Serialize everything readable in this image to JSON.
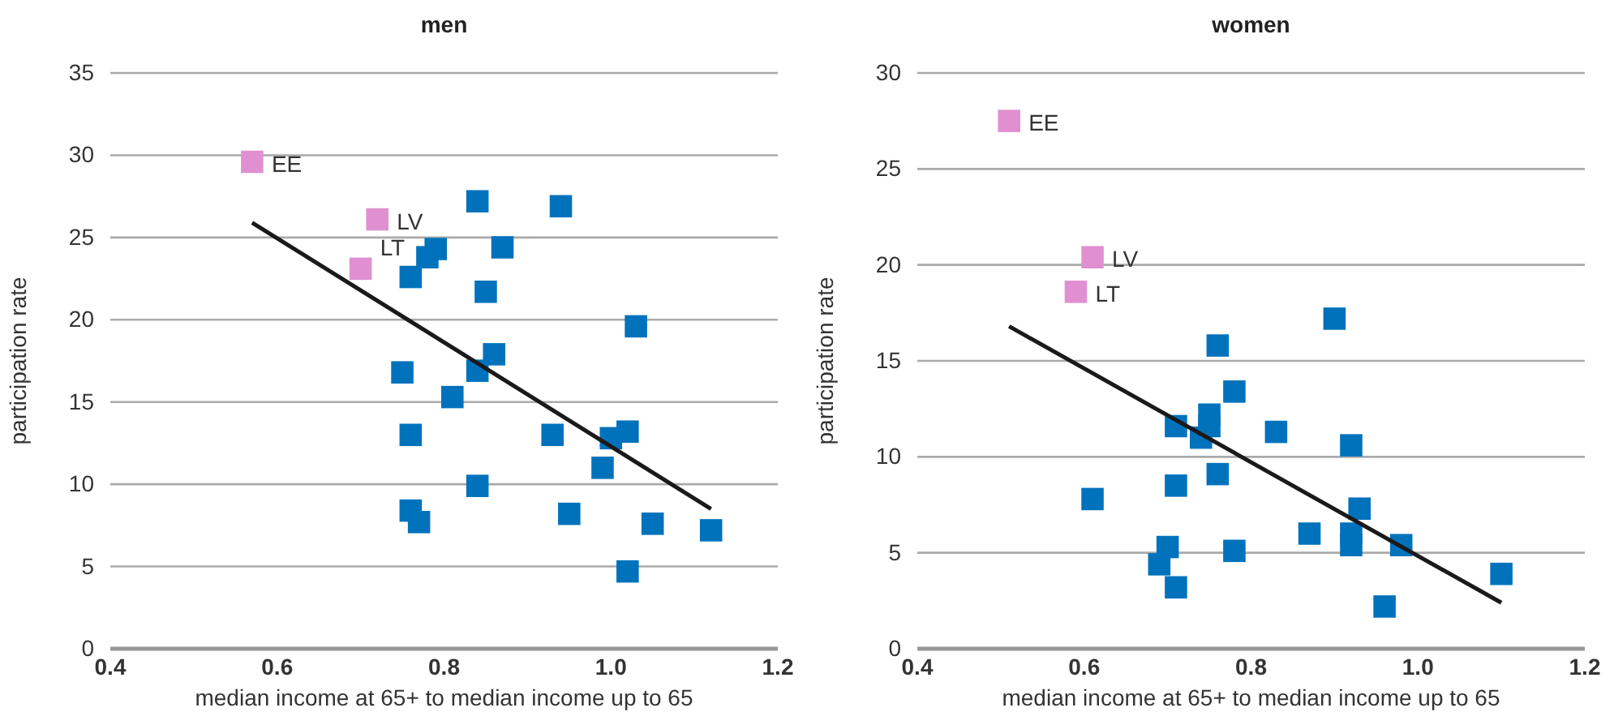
{
  "chart_data": [
    {
      "type": "scatter",
      "title": "men",
      "xlabel": "median income at 65+ to median income up to 65",
      "ylabel": "participation rate",
      "xlim": [
        0.4,
        1.2
      ],
      "xticks": [
        {
          "value": 0.4,
          "label": "0.4"
        },
        {
          "value": 0.6,
          "label": "0.6"
        },
        {
          "value": 0.8,
          "label": "0.8"
        },
        {
          "value": 1.0,
          "label": "1.0"
        },
        {
          "value": 1.2,
          "label": "1.2"
        }
      ],
      "ylim": [
        0,
        35
      ],
      "yticks": [
        0,
        5,
        10,
        15,
        20,
        25,
        30,
        35
      ],
      "grid": "y",
      "marker": "square",
      "series": [
        {
          "color": "#0072bc",
          "x": [
            0.84,
            0.94,
            0.79,
            0.78,
            0.87,
            0.76,
            0.85,
            1.03,
            0.86,
            0.75,
            0.84,
            0.81,
            0.76,
            0.93,
            1.0,
            1.02,
            0.99,
            0.84,
            0.76,
            0.77,
            0.95,
            1.05,
            1.12,
            1.02
          ],
          "values": [
            27.2,
            26.9,
            24.3,
            23.8,
            24.4,
            22.6,
            21.7,
            19.6,
            17.9,
            16.8,
            16.9,
            15.3,
            13.0,
            13.0,
            12.8,
            13.2,
            11.0,
            9.9,
            8.4,
            7.7,
            8.2,
            7.6,
            7.2,
            4.7
          ]
        },
        {
          "color": "#e090d0",
          "x": [
            0.57,
            0.72,
            0.7
          ],
          "values": [
            29.6,
            26.1,
            23.1
          ]
        },
        {
          "type": "line",
          "color": "#1a1a1a",
          "marker": "none",
          "x": [
            0.57,
            1.12
          ],
          "values": [
            25.9,
            8.5
          ]
        }
      ],
      "annotations": [
        {
          "text": "EE",
          "x": 0.57,
          "y": 29.6
        },
        {
          "text": "LV",
          "x": 0.72,
          "y": 26.1
        },
        {
          "text": "LT",
          "x": 0.7,
          "y": 23.1
        }
      ]
    },
    {
      "type": "scatter",
      "title": "women",
      "xlabel": "median income at 65+ to median income up to 65",
      "ylabel": "participation rate",
      "xlim": [
        0.4,
        1.2
      ],
      "xticks": [
        {
          "value": 0.4,
          "label": "0.4"
        },
        {
          "value": 0.6,
          "label": "0.6"
        },
        {
          "value": 0.8,
          "label": "0.8"
        },
        {
          "value": 1.0,
          "label": "1.0"
        },
        {
          "value": 1.2,
          "label": "1.2"
        }
      ],
      "ylim": [
        0,
        30
      ],
      "yticks": [
        0,
        5,
        10,
        15,
        20,
        25,
        30
      ],
      "grid": "y",
      "marker": "square",
      "series": [
        {
          "color": "#0072bc",
          "x": [
            0.9,
            0.76,
            0.78,
            0.75,
            0.71,
            0.74,
            0.83,
            0.92,
            0.75,
            0.61,
            0.71,
            0.76,
            0.7,
            0.69,
            0.71,
            0.78,
            0.87,
            0.93,
            0.92,
            0.92,
            0.98,
            0.96,
            1.1
          ],
          "values": [
            17.2,
            15.8,
            13.4,
            12.2,
            11.6,
            11.0,
            11.3,
            10.6,
            11.6,
            7.8,
            8.5,
            9.1,
            5.3,
            4.4,
            3.2,
            5.1,
            6.0,
            7.3,
            5.4,
            6.0,
            5.4,
            2.2,
            3.9
          ]
        },
        {
          "color": "#e090d0",
          "x": [
            0.51,
            0.61,
            0.59
          ],
          "values": [
            27.5,
            20.4,
            18.6
          ]
        },
        {
          "type": "line",
          "color": "#1a1a1a",
          "marker": "none",
          "x": [
            0.51,
            1.1
          ],
          "values": [
            16.8,
            2.4
          ]
        }
      ],
      "annotations": [
        {
          "text": "EE",
          "x": 0.51,
          "y": 27.5
        },
        {
          "text": "LV",
          "x": 0.61,
          "y": 20.4
        },
        {
          "text": "LT",
          "x": 0.59,
          "y": 18.6
        }
      ]
    }
  ]
}
